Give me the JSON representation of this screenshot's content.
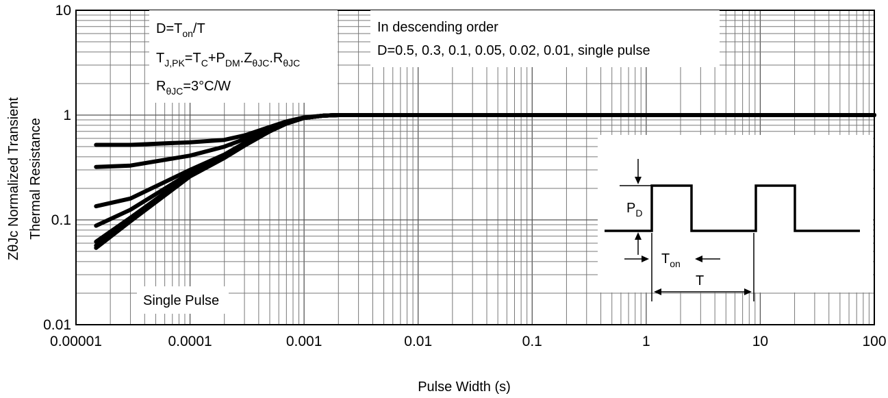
{
  "chart_data": {
    "type": "line",
    "x_scale": "log",
    "y_scale": "log",
    "xlim": [
      1e-05,
      100
    ],
    "ylim": [
      0.01,
      10
    ],
    "grid": true,
    "xlabel": "Pulse Width (s)",
    "ylabel_line1": "ZθJc Normalized Transient",
    "ylabel_line2": "Thermal Resistance",
    "x_ticks": [
      {
        "value": 1e-05,
        "label": "0.00001"
      },
      {
        "value": 0.0001,
        "label": "0.0001"
      },
      {
        "value": 0.001,
        "label": "0.001"
      },
      {
        "value": 0.01,
        "label": "0.01"
      },
      {
        "value": 0.1,
        "label": "0.1"
      },
      {
        "value": 1,
        "label": "1"
      },
      {
        "value": 10,
        "label": "10"
      },
      {
        "value": 100,
        "label": "100"
      }
    ],
    "y_ticks": [
      {
        "value": 10,
        "label": "10"
      },
      {
        "value": 1,
        "label": "1"
      },
      {
        "value": 0.1,
        "label": "0.1"
      },
      {
        "value": 0.01,
        "label": "0.01"
      }
    ],
    "series": [
      {
        "x": [
          1.5e-05,
          3e-05,
          0.0001,
          0.0002,
          0.0003,
          0.0005,
          0.0007,
          0.001,
          0.0015,
          0.002,
          0.005,
          100
        ],
        "y": [
          0.52,
          0.52,
          0.55,
          0.58,
          0.64,
          0.77,
          0.87,
          0.95,
          0.99,
          1.0,
          1.0,
          1.0
        ]
      },
      {
        "x": [
          1.5e-05,
          3e-05,
          0.0001,
          0.0002,
          0.0003,
          0.0005,
          0.0007,
          0.001,
          0.0015,
          0.002,
          0.005,
          100
        ],
        "y": [
          0.32,
          0.33,
          0.41,
          0.5,
          0.59,
          0.74,
          0.85,
          0.94,
          0.99,
          1.0,
          1.0,
          1.0
        ]
      },
      {
        "x": [
          1.5e-05,
          3e-05,
          0.0001,
          0.0002,
          0.0003,
          0.0005,
          0.0007,
          0.001,
          0.0015,
          0.002,
          0.005,
          100
        ],
        "y": [
          0.135,
          0.16,
          0.3,
          0.42,
          0.54,
          0.72,
          0.84,
          0.94,
          0.99,
          1.0,
          1.0,
          1.0
        ]
      },
      {
        "x": [
          1.5e-05,
          3e-05,
          0.0001,
          0.0002,
          0.0003,
          0.0005,
          0.0007,
          0.001,
          0.0015,
          0.002,
          0.005,
          100
        ],
        "y": [
          0.088,
          0.125,
          0.28,
          0.41,
          0.53,
          0.71,
          0.84,
          0.94,
          0.99,
          1.0,
          1.0,
          1.0
        ]
      },
      {
        "x": [
          1.5e-05,
          3e-05,
          0.0001,
          0.0002,
          0.0003,
          0.0005,
          0.0007,
          0.001,
          0.0015,
          0.002,
          0.005,
          100
        ],
        "y": [
          0.062,
          0.105,
          0.27,
          0.4,
          0.52,
          0.7,
          0.83,
          0.94,
          0.99,
          1.0,
          1.0,
          1.0
        ]
      },
      {
        "x": [
          1.5e-05,
          3e-05,
          0.0001,
          0.0002,
          0.0003,
          0.0005,
          0.0007,
          0.001,
          0.0015,
          0.002,
          0.005,
          100
        ],
        "y": [
          0.057,
          0.1,
          0.265,
          0.4,
          0.52,
          0.7,
          0.83,
          0.94,
          0.99,
          1.0,
          1.0,
          1.0
        ]
      },
      {
        "x": [
          1.5e-05,
          3e-05,
          0.0001,
          0.0002,
          0.0003,
          0.0005,
          0.0007,
          0.001,
          0.0015,
          0.002,
          0.005,
          100
        ],
        "y": [
          0.054,
          0.097,
          0.26,
          0.39,
          0.51,
          0.7,
          0.83,
          0.94,
          0.99,
          1.0,
          1.0,
          1.0
        ]
      }
    ],
    "annotations": {
      "d_formula": {
        "main": "D=T",
        "sub": "on",
        "tail": "/T"
      },
      "tj_formula": {
        "parts": [
          {
            "t": "T",
            "s": false
          },
          {
            "t": "J,PK",
            "s": true
          },
          {
            "t": "=T",
            "s": false
          },
          {
            "t": "C",
            "s": true
          },
          {
            "t": "+P",
            "s": false
          },
          {
            "t": "DM",
            "s": true
          },
          {
            "t": ".Z",
            "s": false
          },
          {
            "t": "θJC",
            "s": true
          },
          {
            "t": ".R",
            "s": false
          },
          {
            "t": "θJC",
            "s": true
          }
        ]
      },
      "r_formula": {
        "main": "R",
        "sub": "θJC",
        "tail": "=3°C/W"
      },
      "order_title": "In descending order",
      "order_values": "D=0.5, 0.3, 0.1, 0.05, 0.02, 0.01, single pulse",
      "single_pulse": "Single Pulse"
    },
    "pulse_diagram": {
      "pd_label": {
        "main": "P",
        "sub": "D"
      },
      "ton_label": {
        "main": "T",
        "sub": "on"
      },
      "period_label": "T"
    }
  }
}
